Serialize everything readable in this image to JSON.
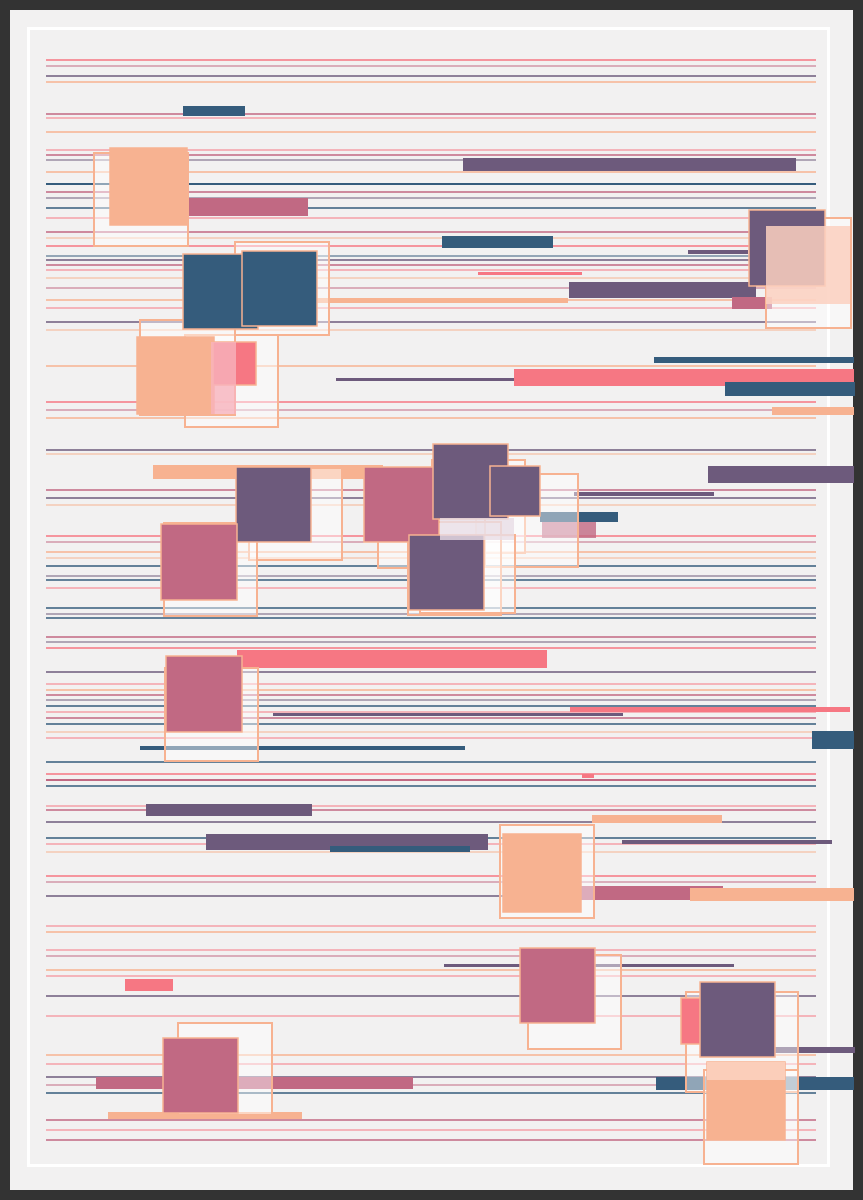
{
  "palette": {
    "background": "#f2f1f1",
    "frame": "#333333",
    "border": "#ffffff",
    "peach": "#f7b291",
    "coral": "#f67783",
    "rose": "#c16983",
    "plum": "#6d5a7c",
    "navy": "#355c7c"
  }
}
